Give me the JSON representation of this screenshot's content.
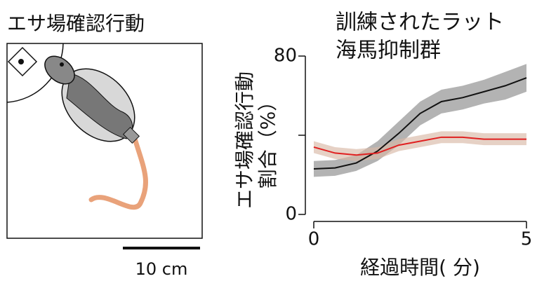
{
  "figure_title": "エサ場確認行動",
  "scale_bar": "10 cm",
  "chart_data": {
    "type": "line",
    "xlabel": "経過時間(  分)",
    "ylabel": [
      "エサ場確認行動",
      "割合（%）"
    ],
    "x": [
      0,
      0.5,
      1,
      1.5,
      2,
      2.5,
      3,
      3.5,
      4,
      4.5,
      5
    ],
    "series": [
      {
        "name": "訓練されたラット",
        "color": "#111111",
        "band_color": "#8a8a8a",
        "values": [
          23,
          23.5,
          26,
          32,
          41,
          51,
          57,
          59,
          62,
          65,
          69
        ],
        "errors": [
          4,
          4,
          4,
          5,
          6,
          6,
          6,
          6,
          6,
          7,
          7
        ]
      },
      {
        "name": "海馬抑制群",
        "color": "#e02020",
        "band_color": "#d9b8a6",
        "values": [
          34,
          31,
          30,
          31,
          35,
          37,
          39,
          39,
          38,
          38,
          38
        ],
        "errors": [
          3,
          3,
          3,
          3,
          3,
          3,
          3,
          3,
          3,
          3,
          3
        ]
      }
    ],
    "xlim": [
      0,
      5
    ],
    "xticks": [
      0,
      5
    ],
    "ylim": [
      0,
      80
    ],
    "yticks": [
      0,
      80
    ],
    "yminorticks": [
      40
    ]
  }
}
